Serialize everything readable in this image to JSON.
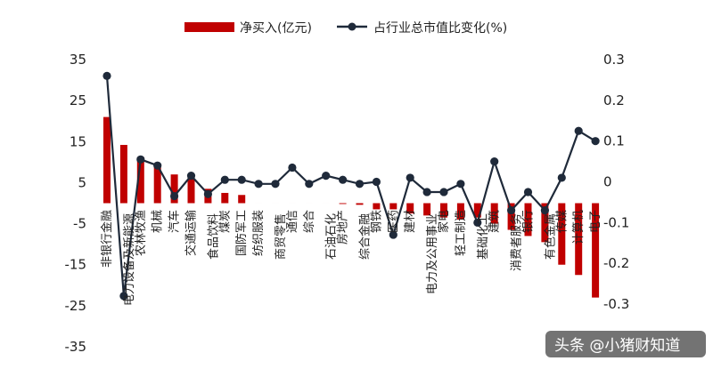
{
  "chart_data": {
    "type": "bar+line",
    "legend": {
      "bar_label": "净买入(亿元)",
      "line_label": "占行业总市值比变化(%)",
      "placement": "top"
    },
    "colors": {
      "bar": "#c00000",
      "line": "#1f2a3a"
    },
    "y_left": {
      "ylim": [
        -35,
        35
      ],
      "ticks": [
        35,
        25,
        15,
        5,
        -5,
        -15,
        -25,
        -35
      ]
    },
    "y_right": {
      "ylim": [
        -0.4,
        0.3
      ],
      "ticks": [
        "0.3",
        "0.2",
        "0.1",
        "0",
        "-0.1",
        "-0.2",
        "-0.3"
      ]
    },
    "categories": [
      "非银行金融",
      "电力设备及新能源",
      "农林牧渔",
      "机械",
      "汽车",
      "交通运输",
      "食品饮料",
      "煤炭",
      "国防军工",
      "纺织服装",
      "商贸零售",
      "通信",
      "综合",
      "石油石化",
      "房地产",
      "综合金融",
      "钢铁",
      "医药",
      "建材",
      "电力及公用事业",
      "家电",
      "轻工制造",
      "基础化工",
      "建筑",
      "消费者服务",
      "银行",
      "有色金属",
      "传媒",
      "计算机",
      "电子"
    ],
    "label_rows": [
      1,
      2,
      1,
      1,
      1,
      1,
      2,
      1,
      1,
      1,
      2,
      1,
      1,
      2,
      1,
      2,
      1,
      1,
      1,
      2,
      1,
      1,
      2,
      1,
      2,
      1,
      2,
      1,
      1,
      1
    ],
    "values": [
      21,
      14.2,
      11.2,
      9,
      7,
      6.5,
      3.5,
      2.5,
      2,
      0,
      0,
      0,
      0,
      0,
      -0.2,
      -0.4,
      -1.5,
      -1.5,
      -2.5,
      -3,
      -3.5,
      -4,
      -3.5,
      -5,
      -6.5,
      -8,
      -9.5,
      -15,
      -17.5,
      -23
    ],
    "line_values": [
      0.26,
      -0.28,
      0.055,
      0.04,
      -0.035,
      0.015,
      -0.03,
      0.005,
      0.005,
      -0.005,
      -0.005,
      0.035,
      -0.005,
      0.015,
      0.005,
      -0.005,
      0.0,
      -0.13,
      0.01,
      -0.025,
      -0.025,
      -0.005,
      -0.1,
      0.05,
      -0.07,
      -0.025,
      -0.07,
      0.01,
      0.125,
      0.1
    ]
  },
  "watermark": "头条 @小猪财知道"
}
